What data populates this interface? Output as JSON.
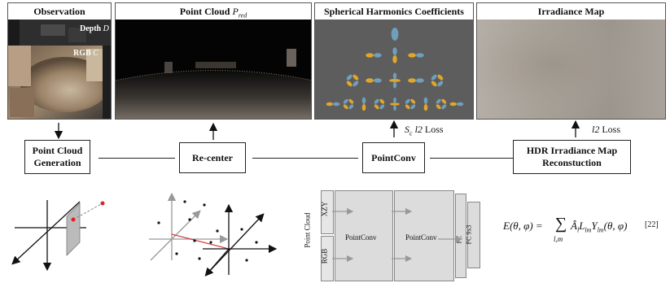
{
  "panels": {
    "observation": {
      "title": "Observation",
      "depth_label": "Depth",
      "depth_symbol": "D",
      "rgb_label": "RGB",
      "rgb_symbol": "C"
    },
    "point_cloud": {
      "title": "Point Cloud",
      "symbol_base": "P",
      "symbol_sub": "red"
    },
    "sh": {
      "title": "Spherical Harmonics Coefficients"
    },
    "irradiance": {
      "title": "Irradiance Map"
    }
  },
  "losses": {
    "sh_loss_symbol_base": "S",
    "sh_loss_symbol_sub": "c",
    "sh_loss_mid": "l2",
    "sh_loss_word": "Loss",
    "irr_loss_mid": "l2",
    "irr_loss_word": "Loss"
  },
  "boxes": {
    "pc_gen_line1": "Point Cloud",
    "pc_gen_line2": "Generation",
    "recenter": "Re-center",
    "pointconv": "PointConv",
    "hdr_line1": "HDR Irradiance Map",
    "hdr_line2": "Reconstuction"
  },
  "network": {
    "side_label": "Point Cloud",
    "xyz": "XZY",
    "rgb": "RGB",
    "block1": "PointConv",
    "block2": "PointConv",
    "fc1": "FC",
    "fc2": "FC 9x3"
  },
  "equation": {
    "lhs": "E(θ, φ) =",
    "sum_symbol": "∑",
    "sum_sub": "l,m",
    "rhs": "Â",
    "citation": "[22]"
  },
  "colors": {
    "irradiance_gradient": [
      "#b5aea6",
      "#a6a097",
      "#9b958d",
      "#aaa39b"
    ],
    "sh_bg": "#5d5d5d",
    "sh_orange": "#e0a62b",
    "sh_blue": "#6f9fbd"
  }
}
